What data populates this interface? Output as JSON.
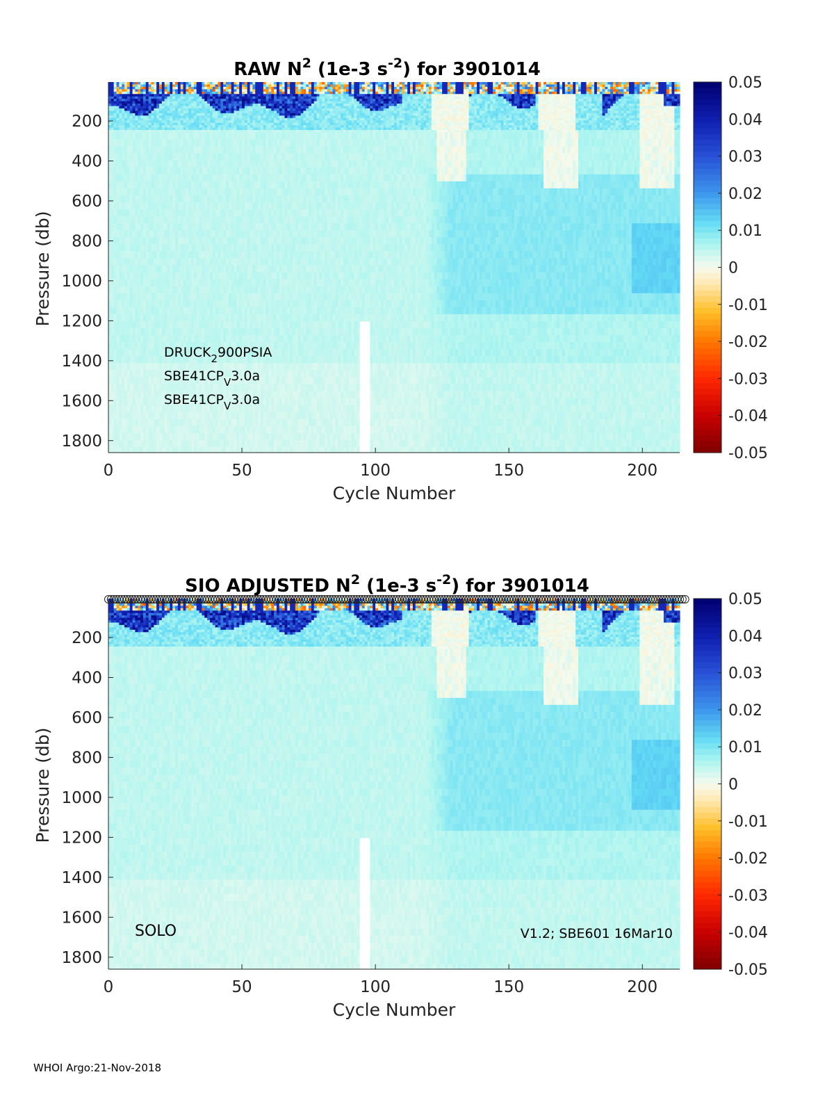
{
  "footer": "WHOI Argo:21-Nov-2018",
  "chart_data": [
    {
      "type": "heatmap",
      "title": {
        "prefix": "RAW N",
        "sup1": "2",
        "mid": " (1e-3 s",
        "sup2": "-2",
        "suffix": ") for 3901014"
      },
      "xlabel": "Cycle Number",
      "ylabel": "Pressure (db)",
      "xlim": [
        0,
        214
      ],
      "ylim": [
        1860,
        5
      ],
      "xticks": [
        "0",
        "50",
        "100",
        "150",
        "200"
      ],
      "yticks": [
        "200",
        "400",
        "600",
        "800",
        "1000",
        "1200",
        "1400",
        "1600",
        "1800"
      ],
      "colorbar": {
        "range": [
          -0.05,
          0.05
        ],
        "ticks": [
          "0.05",
          "0.04",
          "0.03",
          "0.02",
          "0.01",
          "0",
          "-0.01",
          "-0.02",
          "-0.03",
          "-0.04",
          "-0.05"
        ]
      },
      "sensor_lines": [
        {
          "base": "DRUCK",
          "sub": "2",
          "rest": "900PSIA"
        },
        {
          "base": "SBE41CP",
          "sub": "V",
          "rest": "3.0a"
        },
        {
          "base": "SBE41CP",
          "sub": "V",
          "rest": "3.0a"
        }
      ],
      "gap": {
        "cycles": [
          94,
          97
        ],
        "from_pressure": 1200
      }
    },
    {
      "type": "heatmap",
      "title": {
        "prefix": "SIO  ADJUSTED N",
        "sup1": "2",
        "mid": " (1e-3 s",
        "sup2": "-2",
        "suffix": ") for 3901014"
      },
      "xlabel": "Cycle Number",
      "ylabel": "Pressure (db)",
      "xlim": [
        0,
        214
      ],
      "ylim": [
        1860,
        5
      ],
      "xticks": [
        "0",
        "50",
        "100",
        "150",
        "200"
      ],
      "yticks": [
        "200",
        "400",
        "600",
        "800",
        "1000",
        "1200",
        "1400",
        "1600",
        "1800"
      ],
      "colorbar": {
        "range": [
          -0.05,
          0.05
        ],
        "ticks": [
          "0.05",
          "0.04",
          "0.03",
          "0.02",
          "0.01",
          "0",
          "-0.01",
          "-0.02",
          "-0.03",
          "-0.04",
          "-0.05"
        ]
      },
      "float_type": "SOLO",
      "firmware": "V1.2; SBE601 16Mar10",
      "qc_markers_row": true,
      "gap": {
        "cycles": [
          94,
          97
        ],
        "from_pressure": 1200
      }
    }
  ]
}
